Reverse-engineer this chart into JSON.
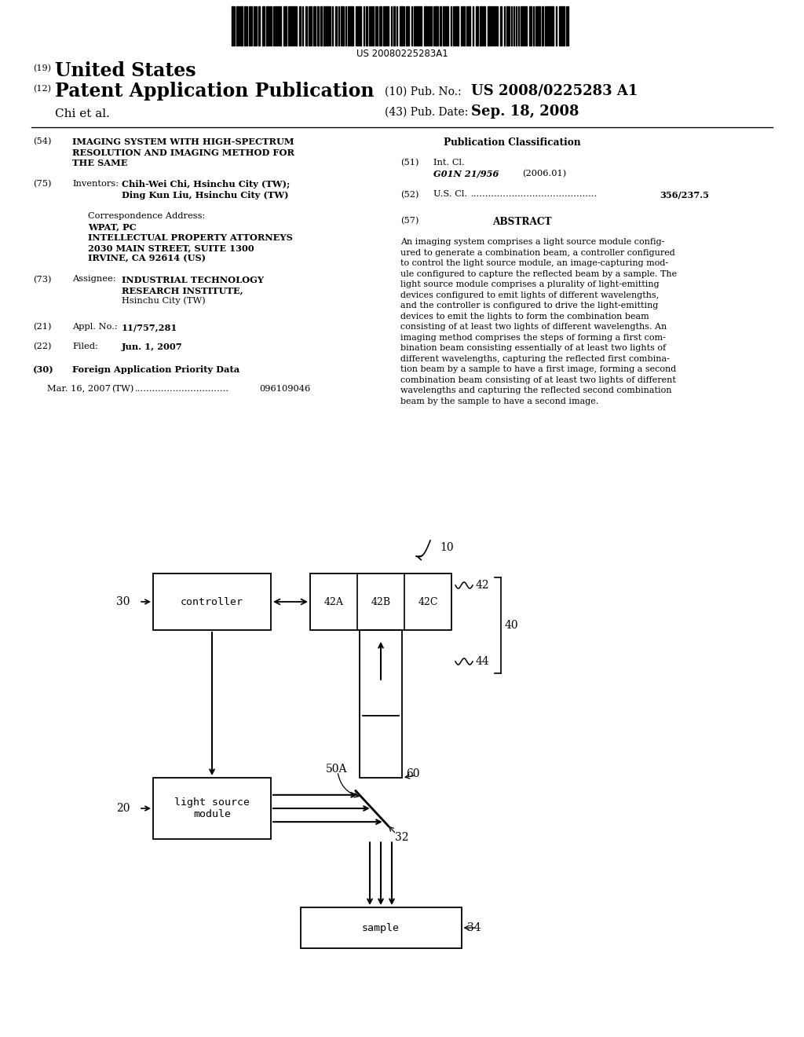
{
  "bg_color": "#ffffff",
  "barcode_text": "US 20080225283A1",
  "title_19_text": "United States",
  "title_12_text": "Patent Application Publication",
  "pub_no_label": "(10) Pub. No.:",
  "pub_no_value": "US 2008/0225283 A1",
  "chi_label": "Chi et al.",
  "pub_date_label": "(43) Pub. Date:",
  "pub_date_value": "Sep. 18, 2008",
  "field54_title_line1": "IMAGING SYSTEM WITH HIGH-SPECTRUM",
  "field54_title_line2": "RESOLUTION AND IMAGING METHOD FOR",
  "field54_title_line3": "THE SAME",
  "field75_value_line1": "Chih-Wei Chi, Hsinchu City (TW);",
  "field75_value_line2": "Ding Kun Liu, Hsinchu City (TW)",
  "corr_label": "Correspondence Address:",
  "corr_line1": "WPAT, PC",
  "corr_line2": "INTELLECTUAL PROPERTY ATTORNEYS",
  "corr_line3": "2030 MAIN STREET, SUITE 1300",
  "corr_line4": "IRVINE, CA 92614 (US)",
  "field73_value_line1": "INDUSTRIAL TECHNOLOGY",
  "field73_value_line2": "RESEARCH INSTITUTE,",
  "field73_value_line3": "Hsinchu City (TW)",
  "field21_value": "11/757,281",
  "field22_value": "Jun. 1, 2007",
  "field30_label": "Foreign Application Priority Data",
  "field30_date": "Mar. 16, 2007",
  "field30_country": "(TW)",
  "field30_dots": "................................",
  "field30_num_val": "096109046",
  "pub_class_title": "Publication Classification",
  "field51_class": "G01N 21/956",
  "field51_year": "(2006.01)",
  "field52_value": "356/237.5",
  "field57_label": "ABSTRACT",
  "abstract_lines": [
    "An imaging system comprises a light source module config-",
    "ured to generate a combination beam, a controller configured",
    "to control the light source module, an image-capturing mod-",
    "ule configured to capture the reflected beam by a sample. The",
    "light source module comprises a plurality of light-emitting",
    "devices configured to emit lights of different wavelengths,",
    "and the controller is configured to drive the light-emitting",
    "devices to emit the lights to form the combination beam",
    "consisting of at least two lights of different wavelengths. An",
    "imaging method comprises the steps of forming a first com-",
    "bination beam consisting essentially of at least two lights of",
    "different wavelengths, capturing the reflected first combina-",
    "tion beam by a sample to have a first image, forming a second",
    "combination beam consisting of at least two lights of different",
    "wavelengths and capturing the reflected second combination",
    "beam by the sample to have a second image."
  ],
  "diagram_label10": "10",
  "diagram_label30": "30",
  "diagram_label20": "20",
  "diagram_label42A": "42A",
  "diagram_label42B": "42B",
  "diagram_label42C": "42C",
  "diagram_label42": "42",
  "diagram_label40": "40",
  "diagram_label44": "44",
  "diagram_label60": "60",
  "diagram_label50A": "50A",
  "diagram_label32": "32",
  "diagram_label34": "34",
  "controller_text": "controller",
  "light_source_line1": "light source",
  "light_source_line2": "module",
  "sample_text": "sample"
}
